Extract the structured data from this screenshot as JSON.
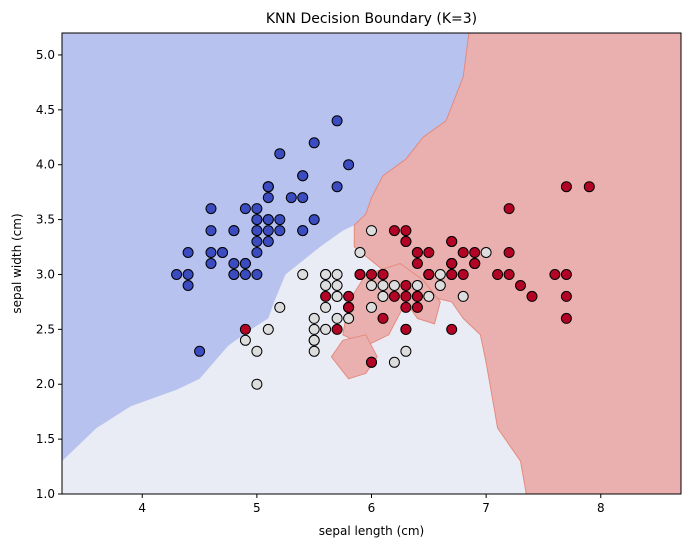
{
  "chart_data": {
    "type": "scatter",
    "title": "KNN Decision Boundary (K=3)",
    "xlabel": "sepal length (cm)",
    "ylabel": "sepal width (cm)",
    "xlim": [
      3.3,
      8.7
    ],
    "ylim": [
      1.0,
      5.2
    ],
    "xticks": [
      4,
      5,
      6,
      7,
      8
    ],
    "xtick_labels": [
      "4",
      "5",
      "6",
      "7",
      "8"
    ],
    "yticks": [
      1.0,
      1.5,
      2.0,
      2.5,
      3.0,
      3.5,
      4.0,
      4.5,
      5.0
    ],
    "ytick_labels": [
      "1.0",
      "1.5",
      "2.0",
      "2.5",
      "3.0",
      "3.5",
      "4.0",
      "4.5",
      "5.0"
    ],
    "grid": false,
    "region_colors": {
      "class_0": "#b7c2ef",
      "class_1": "#e9ecf5",
      "class_2": "#eab0b0"
    },
    "regions": {
      "class_0": [
        [
          3.3,
          1.3
        ],
        [
          3.6,
          1.6
        ],
        [
          3.9,
          1.8
        ],
        [
          4.3,
          1.95
        ],
        [
          4.5,
          2.05
        ],
        [
          4.75,
          2.35
        ],
        [
          4.95,
          2.5
        ],
        [
          5.1,
          2.6
        ],
        [
          5.15,
          2.75
        ],
        [
          5.25,
          3.0
        ],
        [
          5.55,
          3.25
        ],
        [
          5.75,
          3.4
        ],
        [
          5.85,
          3.45
        ],
        [
          5.95,
          3.55
        ],
        [
          6.0,
          3.7
        ],
        [
          6.1,
          3.9
        ],
        [
          6.3,
          4.05
        ],
        [
          6.45,
          4.25
        ],
        [
          6.65,
          4.4
        ],
        [
          6.8,
          4.8
        ],
        [
          6.85,
          5.2
        ],
        [
          3.3,
          5.2
        ]
      ],
      "class_2": [
        [
          5.85,
          3.45
        ],
        [
          5.95,
          3.55
        ],
        [
          6.0,
          3.7
        ],
        [
          6.1,
          3.9
        ],
        [
          6.3,
          4.05
        ],
        [
          6.45,
          4.25
        ],
        [
          6.65,
          4.4
        ],
        [
          6.8,
          4.8
        ],
        [
          6.85,
          5.2
        ],
        [
          8.7,
          5.2
        ],
        [
          8.7,
          1.0
        ],
        [
          7.35,
          1.0
        ],
        [
          7.3,
          1.3
        ],
        [
          7.1,
          1.6
        ],
        [
          7.05,
          1.9
        ],
        [
          7.0,
          2.2
        ],
        [
          6.95,
          2.45
        ],
        [
          6.8,
          2.6
        ],
        [
          6.7,
          2.75
        ],
        [
          6.5,
          2.8
        ],
        [
          6.15,
          3.0
        ],
        [
          5.85,
          3.25
        ]
      ],
      "class_2_islands": [
        [
          [
            5.75,
            2.45
          ],
          [
            5.95,
            2.35
          ],
          [
            6.15,
            2.45
          ],
          [
            6.3,
            2.75
          ],
          [
            6.4,
            2.6
          ],
          [
            6.55,
            2.55
          ],
          [
            6.6,
            2.75
          ],
          [
            6.45,
            2.95
          ],
          [
            6.25,
            3.1
          ],
          [
            5.95,
            3.0
          ],
          [
            5.8,
            2.75
          ]
        ],
        [
          [
            5.65,
            2.25
          ],
          [
            5.8,
            2.05
          ],
          [
            5.95,
            2.1
          ],
          [
            6.05,
            2.25
          ],
          [
            5.95,
            2.45
          ],
          [
            5.75,
            2.4
          ]
        ]
      ]
    },
    "series": [
      {
        "color": "#3b4cc0",
        "points": [
          [
            5.1,
            3.5
          ],
          [
            4.9,
            3.0
          ],
          [
            4.7,
            3.2
          ],
          [
            4.6,
            3.1
          ],
          [
            5.0,
            3.6
          ],
          [
            5.4,
            3.9
          ],
          [
            4.6,
            3.4
          ],
          [
            5.0,
            3.4
          ],
          [
            4.4,
            2.9
          ],
          [
            4.9,
            3.1
          ],
          [
            5.4,
            3.7
          ],
          [
            4.8,
            3.4
          ],
          [
            4.8,
            3.0
          ],
          [
            4.3,
            3.0
          ],
          [
            5.8,
            4.0
          ],
          [
            5.7,
            4.4
          ],
          [
            5.4,
            3.9
          ],
          [
            5.1,
            3.5
          ],
          [
            5.7,
            3.8
          ],
          [
            5.1,
            3.8
          ],
          [
            5.4,
            3.4
          ],
          [
            5.1,
            3.7
          ],
          [
            4.6,
            3.6
          ],
          [
            5.1,
            3.3
          ],
          [
            4.8,
            3.4
          ],
          [
            5.0,
            3.0
          ],
          [
            5.0,
            3.4
          ],
          [
            5.2,
            3.5
          ],
          [
            5.2,
            3.4
          ],
          [
            4.7,
            3.2
          ],
          [
            4.8,
            3.1
          ],
          [
            5.4,
            3.4
          ],
          [
            5.2,
            4.1
          ],
          [
            5.5,
            4.2
          ],
          [
            4.9,
            3.1
          ],
          [
            5.0,
            3.2
          ],
          [
            5.5,
            3.5
          ],
          [
            4.9,
            3.6
          ],
          [
            4.4,
            3.0
          ],
          [
            5.1,
            3.4
          ],
          [
            5.0,
            3.5
          ],
          [
            4.5,
            2.3
          ],
          [
            4.4,
            3.2
          ],
          [
            5.0,
            3.5
          ],
          [
            5.1,
            3.8
          ],
          [
            4.8,
            3.0
          ],
          [
            5.1,
            3.8
          ],
          [
            4.6,
            3.2
          ],
          [
            5.3,
            3.7
          ],
          [
            5.0,
            3.3
          ]
        ]
      },
      {
        "color": "#dddddd",
        "points": [
          [
            7.0,
            3.2
          ],
          [
            6.4,
            3.2
          ],
          [
            6.9,
            3.1
          ],
          [
            5.5,
            2.3
          ],
          [
            6.5,
            2.8
          ],
          [
            5.7,
            2.8
          ],
          [
            6.3,
            3.3
          ],
          [
            4.9,
            2.4
          ],
          [
            6.6,
            2.9
          ],
          [
            5.2,
            2.7
          ],
          [
            5.0,
            2.0
          ],
          [
            5.9,
            3.0
          ],
          [
            6.0,
            2.2
          ],
          [
            6.1,
            2.9
          ],
          [
            5.6,
            2.9
          ],
          [
            6.7,
            3.1
          ],
          [
            5.6,
            3.0
          ],
          [
            5.8,
            2.7
          ],
          [
            6.2,
            2.2
          ],
          [
            5.6,
            2.5
          ],
          [
            5.9,
            3.2
          ],
          [
            6.1,
            2.8
          ],
          [
            6.3,
            2.5
          ],
          [
            6.1,
            2.8
          ],
          [
            6.4,
            2.9
          ],
          [
            6.6,
            3.0
          ],
          [
            6.8,
            2.8
          ],
          [
            6.7,
            3.0
          ],
          [
            6.0,
            2.9
          ],
          [
            5.7,
            2.6
          ],
          [
            5.5,
            2.4
          ],
          [
            5.5,
            2.4
          ],
          [
            5.8,
            2.7
          ],
          [
            6.0,
            2.7
          ],
          [
            5.4,
            3.0
          ],
          [
            6.0,
            3.4
          ],
          [
            6.7,
            3.1
          ],
          [
            6.3,
            2.3
          ],
          [
            5.6,
            3.0
          ],
          [
            5.5,
            2.5
          ],
          [
            5.5,
            2.6
          ],
          [
            6.1,
            3.0
          ],
          [
            5.8,
            2.6
          ],
          [
            5.0,
            2.3
          ],
          [
            5.6,
            2.7
          ],
          [
            5.7,
            3.0
          ],
          [
            5.7,
            2.9
          ],
          [
            6.2,
            2.9
          ],
          [
            5.1,
            2.5
          ],
          [
            5.7,
            2.8
          ]
        ]
      },
      {
        "color": "#b40426",
        "points": [
          [
            6.3,
            3.3
          ],
          [
            5.8,
            2.7
          ],
          [
            7.1,
            3.0
          ],
          [
            6.3,
            2.9
          ],
          [
            6.5,
            3.0
          ],
          [
            7.6,
            3.0
          ],
          [
            4.9,
            2.5
          ],
          [
            7.3,
            2.9
          ],
          [
            6.7,
            2.5
          ],
          [
            7.2,
            3.6
          ],
          [
            6.5,
            3.2
          ],
          [
            6.4,
            2.7
          ],
          [
            6.8,
            3.0
          ],
          [
            5.7,
            2.5
          ],
          [
            5.8,
            2.8
          ],
          [
            6.4,
            3.2
          ],
          [
            6.5,
            3.0
          ],
          [
            7.7,
            3.8
          ],
          [
            7.7,
            2.6
          ],
          [
            6.0,
            2.2
          ],
          [
            6.9,
            3.2
          ],
          [
            5.6,
            2.8
          ],
          [
            7.7,
            2.8
          ],
          [
            6.3,
            2.7
          ],
          [
            6.7,
            3.3
          ],
          [
            7.2,
            3.2
          ],
          [
            6.2,
            2.8
          ],
          [
            6.1,
            3.0
          ],
          [
            6.4,
            2.8
          ],
          [
            7.2,
            3.0
          ],
          [
            7.4,
            2.8
          ],
          [
            7.9,
            3.8
          ],
          [
            6.4,
            2.8
          ],
          [
            6.3,
            2.8
          ],
          [
            6.1,
            2.6
          ],
          [
            7.7,
            3.0
          ],
          [
            6.3,
            3.4
          ],
          [
            6.4,
            3.1
          ],
          [
            6.0,
            3.0
          ],
          [
            6.9,
            3.1
          ],
          [
            6.7,
            3.1
          ],
          [
            6.9,
            3.1
          ],
          [
            5.8,
            2.7
          ],
          [
            6.8,
            3.2
          ],
          [
            6.7,
            3.3
          ],
          [
            6.7,
            3.0
          ],
          [
            6.3,
            2.5
          ],
          [
            6.5,
            3.0
          ],
          [
            6.2,
            3.4
          ],
          [
            5.9,
            3.0
          ]
        ]
      }
    ]
  }
}
